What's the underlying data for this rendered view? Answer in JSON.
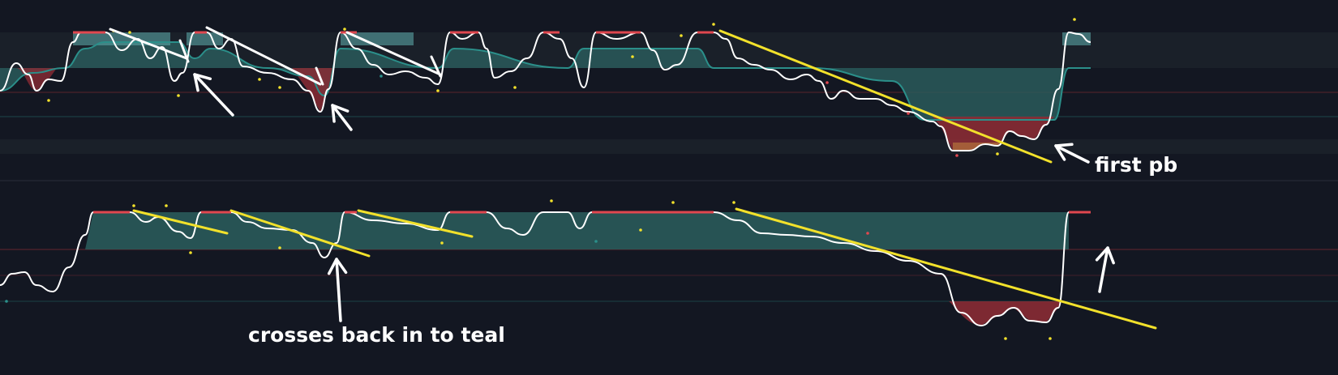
{
  "annotations": {
    "first_pb": "first pb",
    "crosses_back": "crosses back in to teal"
  },
  "colors": {
    "background": "#131722",
    "teal_fill": "#2a5a5a",
    "teal_line": "#2b8f8a",
    "red_fill": "#8a2b34",
    "red_line": "#e0474f",
    "orange_fill": "#a8633a",
    "oscillator": "#ffffff",
    "trendline_yellow": "#f2e12b",
    "trendline_white": "#ffffff",
    "light_band": "#5aa5a5"
  },
  "chart_data": [
    {
      "type": "area",
      "pane": "upper oscillator",
      "x": [
        0,
        5,
        10,
        15,
        20,
        25,
        30,
        35,
        40,
        45,
        50,
        55,
        60,
        65,
        70,
        75,
        80,
        85,
        90,
        95,
        100
      ],
      "series": [
        {
          "values": [
            55,
            65,
            55,
            70,
            100,
            95,
            70,
            100,
            90,
            80,
            55,
            72,
            100,
            70,
            95,
            50,
            40,
            20,
            10,
            30,
            100
          ]
        },
        {
          "values": [
            40,
            60,
            60,
            60,
            90,
            90,
            60,
            90,
            90,
            60,
            60,
            60,
            90,
            60,
            60,
            60,
            40,
            20,
            20,
            40,
            85
          ]
        }
      ],
      "ylim": [
        0,
        110
      ],
      "grid": true
    },
    {
      "type": "area",
      "pane": "lower oscillator",
      "x": [
        0,
        5,
        10,
        15,
        20,
        25,
        30,
        35,
        40,
        45,
        50,
        55,
        60,
        65,
        70,
        75,
        80,
        85,
        90,
        95,
        100
      ],
      "series": [
        {
          "values": [
            20,
            30,
            25,
            90,
            90,
            70,
            90,
            60,
            90,
            75,
            90,
            80,
            90,
            90,
            90,
            65,
            55,
            30,
            10,
            20,
            90
          ]
        }
      ],
      "ylim": [
        0,
        100
      ],
      "grid": true
    }
  ]
}
